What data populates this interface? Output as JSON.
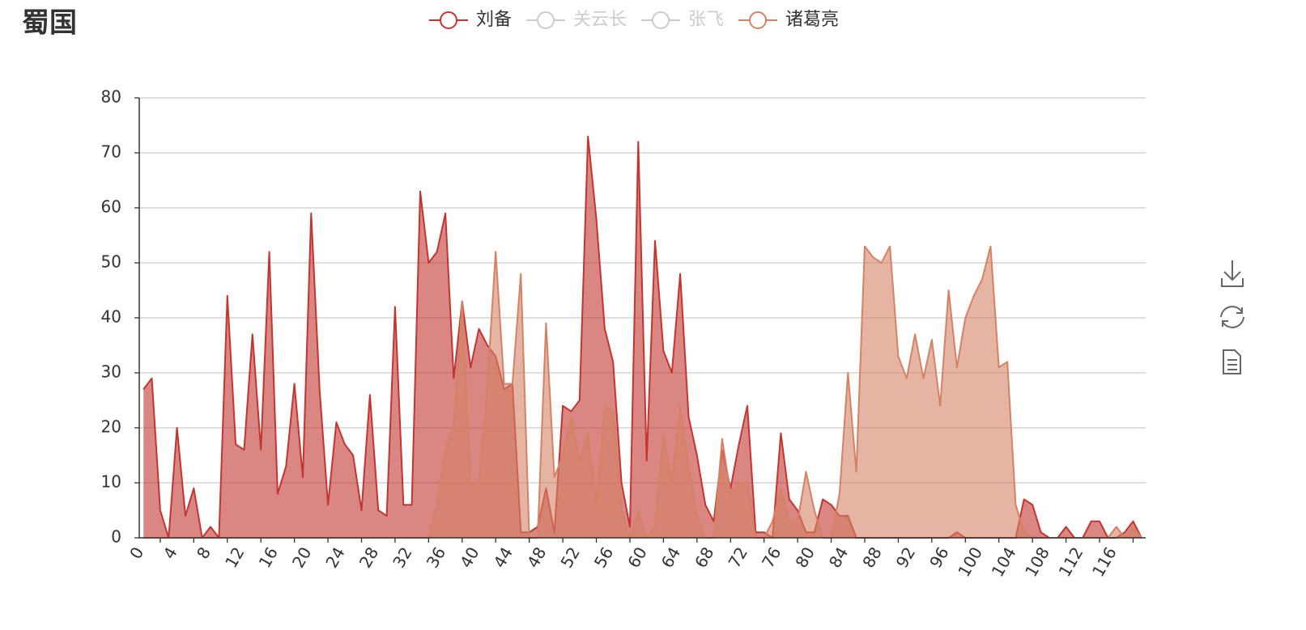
{
  "chart_data": {
    "type": "line",
    "area": true,
    "title": "蜀国",
    "categories": [
      "0",
      null,
      null,
      null,
      "4",
      null,
      null,
      null,
      "8",
      null,
      null,
      null,
      "12",
      null,
      null,
      null,
      "16",
      null,
      null,
      null,
      "20",
      null,
      null,
      null,
      "24",
      null,
      null,
      null,
      "28",
      null,
      null,
      null,
      "32",
      null,
      null,
      null,
      "36",
      null,
      null,
      null,
      "40",
      null,
      null,
      null,
      "44",
      null,
      null,
      null,
      "48",
      null,
      null,
      null,
      "52",
      null,
      null,
      null,
      "56",
      null,
      null,
      null,
      "60",
      null,
      null,
      null,
      "64",
      null,
      null,
      null,
      "68",
      null,
      null,
      null,
      "72",
      null,
      null,
      null,
      "76",
      null,
      null,
      null,
      "80",
      null,
      null,
      null,
      "84",
      null,
      null,
      null,
      "88",
      null,
      null,
      null,
      "92",
      null,
      null,
      null,
      "96",
      null,
      null,
      null,
      "100",
      null,
      null,
      null,
      "104",
      null,
      null,
      null,
      "108",
      null,
      null,
      null,
      "112",
      null,
      null,
      null,
      "116",
      null,
      null,
      null
    ],
    "series": [
      {
        "name": "刘备",
        "color": "#c23531",
        "values": [
          27,
          29,
          5,
          0,
          20,
          4,
          9,
          0,
          2,
          0,
          44,
          17,
          16,
          37,
          16,
          52,
          8,
          13,
          28,
          11,
          59,
          27,
          6,
          21,
          17,
          15,
          5,
          26,
          5,
          4,
          42,
          6,
          6,
          63,
          50,
          52,
          59,
          29,
          43,
          31,
          38,
          35,
          33,
          27,
          28,
          1,
          1,
          2,
          9,
          1,
          24,
          23,
          25,
          73,
          58,
          38,
          32,
          10,
          2,
          72,
          14,
          54,
          34,
          30,
          48,
          22,
          15,
          6,
          3,
          16,
          9,
          17,
          24,
          1,
          1,
          0,
          19,
          7,
          5,
          1,
          1,
          7,
          6,
          4,
          4,
          0,
          0,
          0,
          0,
          0,
          0,
          0,
          0,
          0,
          0,
          0,
          0,
          1,
          0,
          0,
          0,
          0,
          0,
          0,
          0,
          7,
          6,
          1,
          0,
          0,
          2,
          0,
          0,
          3,
          3,
          0,
          0,
          1,
          3,
          0
        ]
      },
      {
        "name": "关云长",
        "color": "#cccccc",
        "visible": false
      },
      {
        "name": "张飞",
        "color": "#cccccc",
        "visible": false
      },
      {
        "name": "诸葛亮",
        "color": "#d48265",
        "values": [
          0,
          0,
          0,
          0,
          0,
          0,
          0,
          0,
          0,
          0,
          0,
          0,
          0,
          0,
          0,
          0,
          0,
          0,
          0,
          0,
          0,
          0,
          0,
          0,
          0,
          0,
          0,
          0,
          0,
          0,
          0,
          0,
          0,
          0,
          0,
          6,
          16,
          20,
          43,
          10,
          10,
          28,
          52,
          28,
          28,
          48,
          0,
          0,
          39,
          11,
          15,
          22,
          14,
          19,
          6,
          24,
          23,
          5,
          0,
          5,
          0,
          2,
          19,
          10,
          24,
          13,
          4,
          0,
          0,
          18,
          8,
          10,
          10,
          0,
          0,
          3,
          9,
          3,
          3,
          12,
          5,
          0,
          0,
          8,
          30,
          12,
          53,
          51,
          50,
          53,
          33,
          29,
          37,
          29,
          36,
          24,
          45,
          31,
          40,
          44,
          47,
          53,
          31,
          32,
          6,
          1,
          0,
          0,
          0,
          0,
          0,
          0,
          0,
          0,
          0,
          0,
          2,
          0,
          2,
          0
        ]
      }
    ],
    "ylim": [
      0,
      80
    ],
    "yticks": [
      0,
      10,
      20,
      30,
      40,
      50,
      60,
      70,
      80
    ],
    "grid": true
  }
}
